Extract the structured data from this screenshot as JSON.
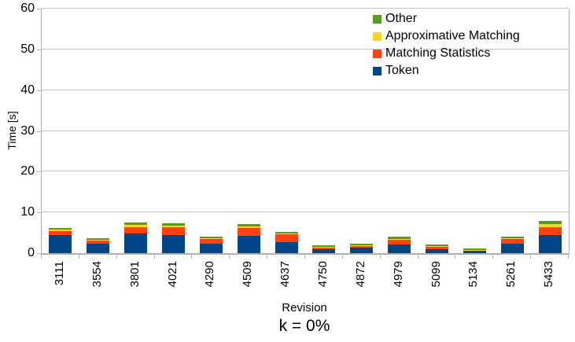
{
  "chart_data": {
    "type": "bar",
    "stacked": true,
    "title": "k = 0%",
    "xlabel": "Revision",
    "ylabel": "Time [s]",
    "ylim": [
      0,
      60
    ],
    "yticks": [
      0,
      10,
      20,
      30,
      40,
      50,
      60
    ],
    "grid": "horizontal",
    "legend_position": "top-right-inside",
    "legend_order_top_to_bottom": [
      "Other",
      "Approximative Matching",
      "Matching Statistics",
      "Token"
    ],
    "categories": [
      "3111",
      "3554",
      "3801",
      "4021",
      "4290",
      "4509",
      "4637",
      "4750",
      "4872",
      "4979",
      "5099",
      "5134",
      "5261",
      "5433"
    ],
    "series": [
      {
        "name": "Token",
        "color": "#004586",
        "values": [
          4.4,
          2.3,
          4.8,
          4.5,
          2.3,
          4.3,
          2.8,
          1.0,
          1.3,
          2.1,
          1.0,
          0.5,
          2.4,
          4.4
        ]
      },
      {
        "name": "Matching Statistics",
        "color": "#FF420E",
        "values": [
          1.0,
          0.8,
          1.6,
          1.8,
          1.2,
          1.9,
          1.8,
          0.4,
          0.5,
          1.2,
          0.6,
          0.2,
          1.0,
          1.9
        ]
      },
      {
        "name": "Approximative Matching",
        "color": "#FFD320",
        "values": [
          0.3,
          0.2,
          0.5,
          0.4,
          0.2,
          0.3,
          0.2,
          0.1,
          0.1,
          0.2,
          0.1,
          0.1,
          0.2,
          0.9
        ]
      },
      {
        "name": "Other",
        "color": "#579D1C",
        "values": [
          0.4,
          0.4,
          0.6,
          0.7,
          0.4,
          0.6,
          0.5,
          0.5,
          0.5,
          0.6,
          0.5,
          0.3,
          0.5,
          0.7
        ]
      }
    ],
    "colors": {
      "grid": "#c5c5c5",
      "axis": "#b3b3b3",
      "text": "#000000"
    }
  }
}
